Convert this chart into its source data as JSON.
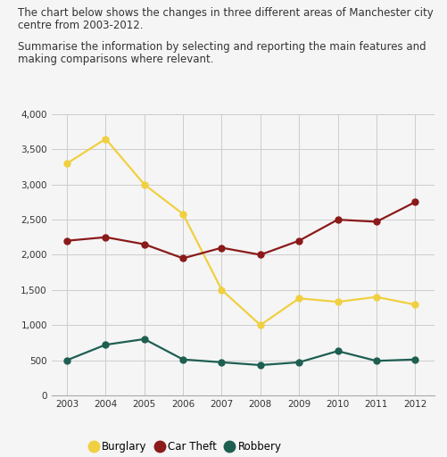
{
  "years": [
    2003,
    2004,
    2005,
    2006,
    2007,
    2008,
    2009,
    2010,
    2011,
    2012
  ],
  "burglary": [
    3300,
    3650,
    3000,
    2580,
    1500,
    1000,
    1380,
    1330,
    1400,
    1290
  ],
  "car_theft": [
    2200,
    2250,
    2150,
    1950,
    2100,
    2000,
    2200,
    2500,
    2470,
    2750
  ],
  "robbery": [
    500,
    720,
    800,
    510,
    470,
    430,
    470,
    630,
    490,
    510
  ],
  "burglary_color": "#f0d040",
  "car_theft_color": "#8b1a1a",
  "robbery_color": "#1e5f52",
  "ylim": [
    0,
    4000
  ],
  "yticks": [
    0,
    500,
    1000,
    1500,
    2000,
    2500,
    3000,
    3500,
    4000
  ],
  "ytick_labels": [
    "0",
    "500",
    "1,000",
    "1,500",
    "2,000",
    "2,500",
    "3,000",
    "3,500",
    "4,000"
  ],
  "title_line1": "The chart below shows the changes in three different areas of Manchester city",
  "title_line2": "centre from 2003-2012.",
  "subtitle_line1": "Summarise the information by selecting and reporting the main features and",
  "subtitle_line2": "making comparisons where relevant.",
  "legend_labels": [
    "Burglary",
    "Car Theft",
    "Robbery"
  ],
  "marker": "o",
  "markersize": 5,
  "linewidth": 1.6,
  "background_color": "#f5f5f5",
  "grid_color": "#cccccc",
  "text_color": "#333333",
  "font_size_title": 8.5,
  "font_size_ticks": 7.5,
  "font_size_legend": 8.5
}
